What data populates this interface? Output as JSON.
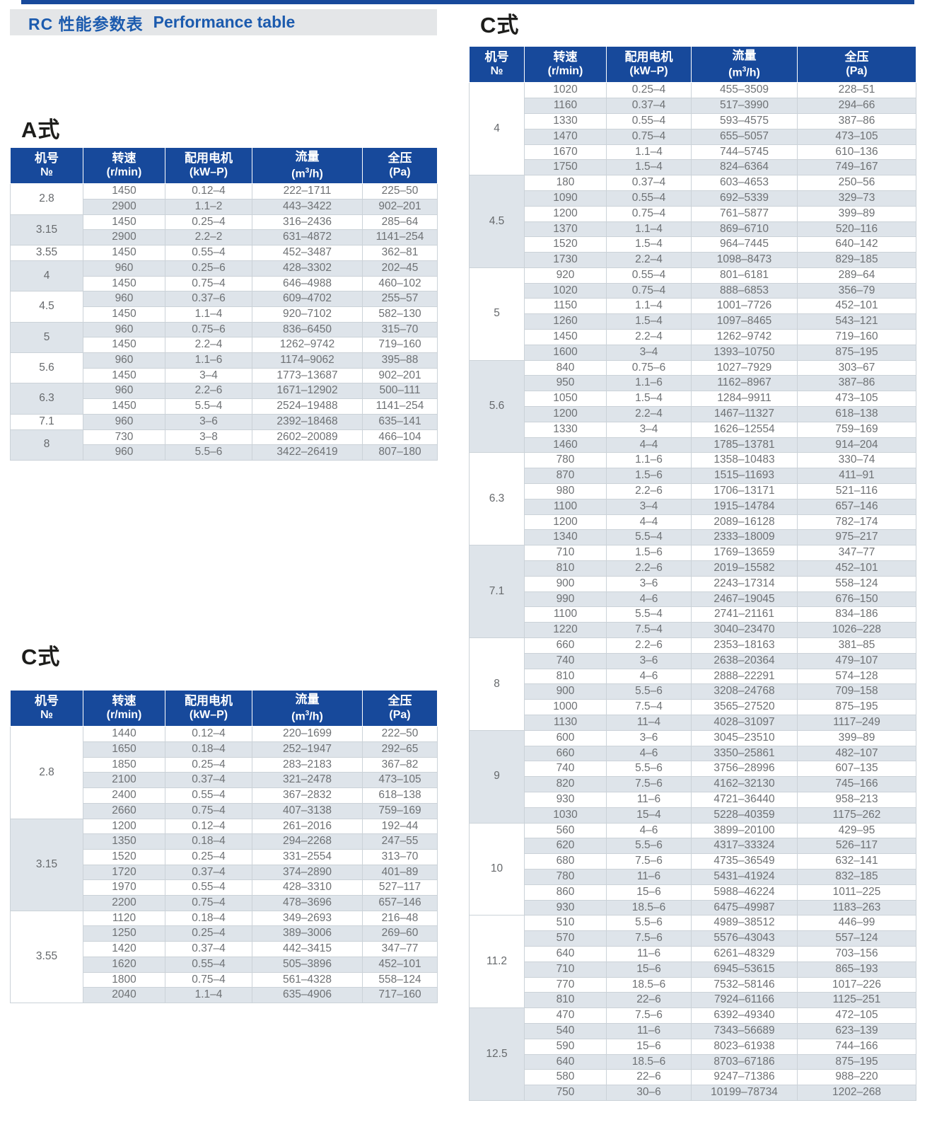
{
  "page_title": {
    "zh": "RC 性能参数表",
    "en": "Performance table"
  },
  "column_headers": [
    {
      "title": "机号",
      "unit": "№"
    },
    {
      "title": "转速",
      "unit": "(r/min)"
    },
    {
      "title": "配用电机",
      "unit": "(kW–P)"
    },
    {
      "title": "流量",
      "unit_pre": "(m",
      "unit_sup": "3",
      "unit_post": "/h)"
    },
    {
      "title": "全压",
      "unit": "(Pa)"
    }
  ],
  "colors": {
    "header_blue": "#17499b",
    "title_blue": "#1c5bae",
    "band_gray": "#e4e6e8",
    "alt_row": "#dee4ea",
    "data_text": "#6e7174"
  },
  "tables": {
    "a": {
      "heading": "A式",
      "groups": [
        {
          "no": "2.8",
          "shaded": false,
          "rows": [
            [
              "1450",
              "0.12–4",
              "222–1711",
              "225–50"
            ],
            [
              "2900",
              "1.1–2",
              "443–3422",
              "902–201"
            ]
          ]
        },
        {
          "no": "3.15",
          "shaded": true,
          "rows": [
            [
              "1450",
              "0.25–4",
              "316–2436",
              "285–64"
            ],
            [
              "2900",
              "2.2–2",
              "631–4872",
              "1141–254"
            ]
          ]
        },
        {
          "no": "3.55",
          "shaded": false,
          "rows": [
            [
              "1450",
              "0.55–4",
              "452–3487",
              "362–81"
            ]
          ]
        },
        {
          "no": "4",
          "shaded": true,
          "rows": [
            [
              "960",
              "0.25–6",
              "428–3302",
              "202–45"
            ],
            [
              "1450",
              "0.75–4",
              "646–4988",
              "460–102"
            ]
          ]
        },
        {
          "no": "4.5",
          "shaded": false,
          "rows": [
            [
              "960",
              "0.37–6",
              "609–4702",
              "255–57"
            ],
            [
              "1450",
              "1.1–4",
              "920–7102",
              "582–130"
            ]
          ]
        },
        {
          "no": "5",
          "shaded": true,
          "rows": [
            [
              "960",
              "0.75–6",
              "836–6450",
              "315–70"
            ],
            [
              "1450",
              "2.2–4",
              "1262–9742",
              "719–160"
            ]
          ]
        },
        {
          "no": "5.6",
          "shaded": false,
          "rows": [
            [
              "960",
              "1.1–6",
              "1174–9062",
              "395–88"
            ],
            [
              "1450",
              "3–4",
              "1773–13687",
              "902–201"
            ]
          ]
        },
        {
          "no": "6.3",
          "shaded": true,
          "rows": [
            [
              "960",
              "2.2–6",
              "1671–12902",
              "500–111"
            ],
            [
              "1450",
              "5.5–4",
              "2524–19488",
              "1141–254"
            ]
          ]
        },
        {
          "no": "7.1",
          "shaded": false,
          "rows": [
            [
              "960",
              "3–6",
              "2392–18468",
              "635–141"
            ]
          ]
        },
        {
          "no": "8",
          "shaded": true,
          "rows": [
            [
              "730",
              "3–8",
              "2602–20089",
              "466–104"
            ],
            [
              "960",
              "5.5–6",
              "3422–26419",
              "807–180"
            ]
          ]
        }
      ]
    },
    "c_left": {
      "heading": "C式",
      "groups": [
        {
          "no": "2.8",
          "shaded": false,
          "rows": [
            [
              "1440",
              "0.12–4",
              "220–1699",
              "222–50"
            ],
            [
              "1650",
              "0.18–4",
              "252–1947",
              "292–65"
            ],
            [
              "1850",
              "0.25–4",
              "283–2183",
              "367–82"
            ],
            [
              "2100",
              "0.37–4",
              "321–2478",
              "473–105"
            ],
            [
              "2400",
              "0.55–4",
              "367–2832",
              "618–138"
            ],
            [
              "2660",
              "0.75–4",
              "407–3138",
              "759–169"
            ]
          ]
        },
        {
          "no": "3.15",
          "shaded": true,
          "rows": [
            [
              "1200",
              "0.12–4",
              "261–2016",
              "192–44"
            ],
            [
              "1350",
              "0.18–4",
              "294–2268",
              "247–55"
            ],
            [
              "1520",
              "0.25–4",
              "331–2554",
              "313–70"
            ],
            [
              "1720",
              "0.37–4",
              "374–2890",
              "401–89"
            ],
            [
              "1970",
              "0.55–4",
              "428–3310",
              "527–117"
            ],
            [
              "2200",
              "0.75–4",
              "478–3696",
              "657–146"
            ]
          ]
        },
        {
          "no": "3.55",
          "shaded": false,
          "rows": [
            [
              "1120",
              "0.18–4",
              "349–2693",
              "216–48"
            ],
            [
              "1250",
              "0.25–4",
              "389–3006",
              "269–60"
            ],
            [
              "1420",
              "0.37–4",
              "442–3415",
              "347–77"
            ],
            [
              "1620",
              "0.55–4",
              "505–3896",
              "452–101"
            ],
            [
              "1800",
              "0.75–4",
              "561–4328",
              "558–124"
            ],
            [
              "2040",
              "1.1–4",
              "635–4906",
              "717–160"
            ]
          ]
        }
      ]
    },
    "c_right": {
      "heading": "C式",
      "groups": [
        {
          "no": "4",
          "shaded": false,
          "rows": [
            [
              "1020",
              "0.25–4",
              "455–3509",
              "228–51"
            ],
            [
              "1160",
              "0.37–4",
              "517–3990",
              "294–66"
            ],
            [
              "1330",
              "0.55–4",
              "593–4575",
              "387–86"
            ],
            [
              "1470",
              "0.75–4",
              "655–5057",
              "473–105"
            ],
            [
              "1670",
              "1.1–4",
              "744–5745",
              "610–136"
            ],
            [
              "1750",
              "1.5–4",
              "824–6364",
              "749–167"
            ]
          ]
        },
        {
          "no": "4.5",
          "shaded": true,
          "rows": [
            [
              "180",
              "0.37–4",
              "603–4653",
              "250–56"
            ],
            [
              "1090",
              "0.55–4",
              "692–5339",
              "329–73"
            ],
            [
              "1200",
              "0.75–4",
              "761–5877",
              "399–89"
            ],
            [
              "1370",
              "1.1–4",
              "869–6710",
              "520–116"
            ],
            [
              "1520",
              "1.5–4",
              "964–7445",
              "640–142"
            ],
            [
              "1730",
              "2.2–4",
              "1098–8473",
              "829–185"
            ]
          ]
        },
        {
          "no": "5",
          "shaded": false,
          "rows": [
            [
              "920",
              "0.55–4",
              "801–6181",
              "289–64"
            ],
            [
              "1020",
              "0.75–4",
              "888–6853",
              "356–79"
            ],
            [
              "1150",
              "1.1–4",
              "1001–7726",
              "452–101"
            ],
            [
              "1260",
              "1.5–4",
              "1097–8465",
              "543–121"
            ],
            [
              "1450",
              "2.2–4",
              "1262–9742",
              "719–160"
            ],
            [
              "1600",
              "3–4",
              "1393–10750",
              "875–195"
            ]
          ]
        },
        {
          "no": "5.6",
          "shaded": true,
          "rows": [
            [
              "840",
              "0.75–6",
              "1027–7929",
              "303–67"
            ],
            [
              "950",
              "1.1–6",
              "1162–8967",
              "387–86"
            ],
            [
              "1050",
              "1.5–4",
              "1284–9911",
              "473–105"
            ],
            [
              "1200",
              "2.2–4",
              "1467–11327",
              "618–138"
            ],
            [
              "1330",
              "3–4",
              "1626–12554",
              "759–169"
            ],
            [
              "1460",
              "4–4",
              "1785–13781",
              "914–204"
            ]
          ]
        },
        {
          "no": "6.3",
          "shaded": false,
          "rows": [
            [
              "780",
              "1.1–6",
              "1358–10483",
              "330–74"
            ],
            [
              "870",
              "1.5–6",
              "1515–11693",
              "411–91"
            ],
            [
              "980",
              "2.2–6",
              "1706–13171",
              "521–116"
            ],
            [
              "1100",
              "3–4",
              "1915–14784",
              "657–146"
            ],
            [
              "1200",
              "4–4",
              "2089–16128",
              "782–174"
            ],
            [
              "1340",
              "5.5–4",
              "2333–18009",
              "975–217"
            ]
          ]
        },
        {
          "no": "7.1",
          "shaded": true,
          "rows": [
            [
              "710",
              "1.5–6",
              "1769–13659",
              "347–77"
            ],
            [
              "810",
              "2.2–6",
              "2019–15582",
              "452–101"
            ],
            [
              "900",
              "3–6",
              "2243–17314",
              "558–124"
            ],
            [
              "990",
              "4–6",
              "2467–19045",
              "676–150"
            ],
            [
              "1100",
              "5.5–4",
              "2741–21161",
              "834–186"
            ],
            [
              "1220",
              "7.5–4",
              "3040–23470",
              "1026–228"
            ]
          ]
        },
        {
          "no": "8",
          "shaded": false,
          "rows": [
            [
              "660",
              "2.2–6",
              "2353–18163",
              "381–85"
            ],
            [
              "740",
              "3–6",
              "2638–20364",
              "479–107"
            ],
            [
              "810",
              "4–6",
              "2888–22291",
              "574–128"
            ],
            [
              "900",
              "5.5–6",
              "3208–24768",
              "709–158"
            ],
            [
              "1000",
              "7.5–4",
              "3565–27520",
              "875–195"
            ],
            [
              "1130",
              "11–4",
              "4028–31097",
              "1117–249"
            ]
          ]
        },
        {
          "no": "9",
          "shaded": true,
          "rows": [
            [
              "600",
              "3–6",
              "3045–23510",
              "399–89"
            ],
            [
              "660",
              "4–6",
              "3350–25861",
              "482–107"
            ],
            [
              "740",
              "5.5–6",
              "3756–28996",
              "607–135"
            ],
            [
              "820",
              "7.5–6",
              "4162–32130",
              "745–166"
            ],
            [
              "930",
              "11–6",
              "4721–36440",
              "958–213"
            ],
            [
              "1030",
              "15–4",
              "5228–40359",
              "1175–262"
            ]
          ]
        },
        {
          "no": "10",
          "shaded": false,
          "rows": [
            [
              "560",
              "4–6",
              "3899–20100",
              "429–95"
            ],
            [
              "620",
              "5.5–6",
              "4317–33324",
              "526–117"
            ],
            [
              "680",
              "7.5–6",
              "4735–36549",
              "632–141"
            ],
            [
              "780",
              "11–6",
              "5431–41924",
              "832–185"
            ],
            [
              "860",
              "15–6",
              "5988–46224",
              "1011–225"
            ],
            [
              "930",
              "18.5–6",
              "6475–49987",
              "1183–263"
            ]
          ]
        },
        {
          "no": "11.2",
          "shaded": false,
          "rows": [
            [
              "510",
              "5.5–6",
              "4989–38512",
              "446–99"
            ],
            [
              "570",
              "7.5–6",
              "5576–43043",
              "557–124"
            ],
            [
              "640",
              "11–6",
              "6261–48329",
              "703–156"
            ],
            [
              "710",
              "15–6",
              "6945–53615",
              "865–193"
            ],
            [
              "770",
              "18.5–6",
              "7532–58146",
              "1017–226"
            ],
            [
              "810",
              "22–6",
              "7924–61166",
              "1125–251"
            ]
          ]
        },
        {
          "no": "12.5",
          "shaded": true,
          "rows": [
            [
              "470",
              "7.5–6",
              "6392–49340",
              "472–105"
            ],
            [
              "540",
              "11–6",
              "7343–56689",
              "623–139"
            ],
            [
              "590",
              "15–6",
              "8023–61938",
              "744–166"
            ],
            [
              "640",
              "18.5–6",
              "8703–67186",
              "875–195"
            ],
            [
              "580",
              "22–6",
              "9247–71386",
              "988–220"
            ],
            [
              "750",
              "30–6",
              "10199–78734",
              "1202–268"
            ]
          ]
        }
      ]
    }
  }
}
